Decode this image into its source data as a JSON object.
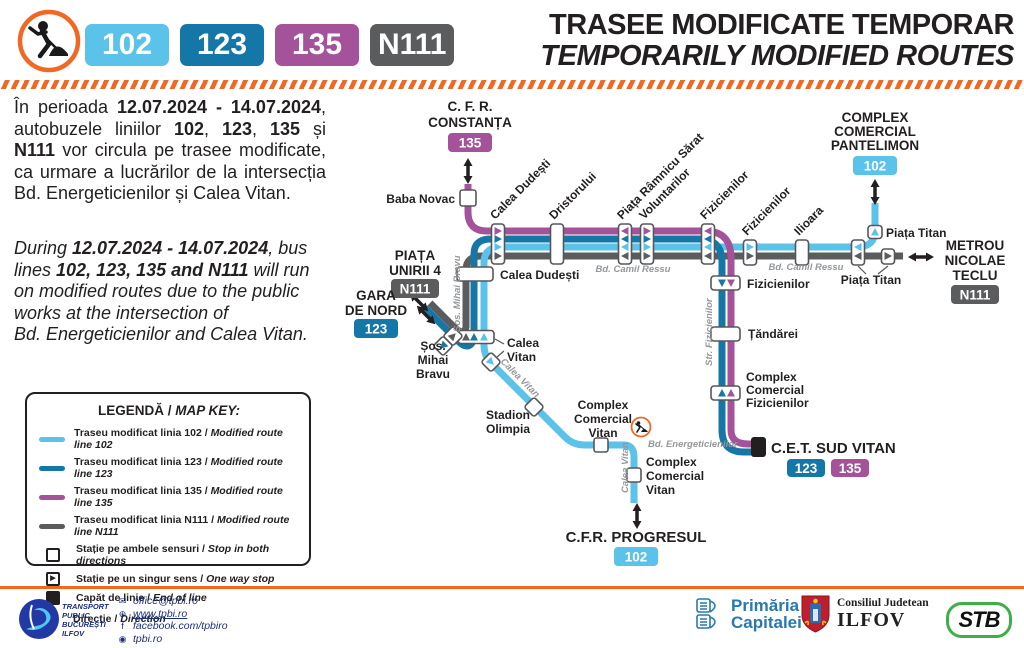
{
  "colors": {
    "line102": "#5BC2E9",
    "line123": "#1577A7",
    "line135": "#A4539B",
    "lineN111": "#5B5C5E",
    "accent_orange": "#F26722"
  },
  "header": {
    "badges": [
      {
        "label": "102",
        "color_key": "line102"
      },
      {
        "label": "123",
        "color_key": "line123"
      },
      {
        "label": "135",
        "color_key": "line135"
      },
      {
        "label": "N111",
        "color_key": "lineN111"
      }
    ],
    "title_line1": "TRASEE MODIFICATE TEMPORAR",
    "title_line2": "TEMPORARILY MODIFIED ROUTES"
  },
  "info": {
    "paragraph_ro": [
      {
        "t": "În perioada ",
        "b": false
      },
      {
        "t": "12.07.2024 - 14.07.2024",
        "b": true
      },
      {
        "t": ", autobuzele liniilor ",
        "b": false
      },
      {
        "t": "102",
        "b": true
      },
      {
        "t": ", ",
        "b": false
      },
      {
        "t": "123",
        "b": true
      },
      {
        "t": ", ",
        "b": false
      },
      {
        "t": "135",
        "b": true
      },
      {
        "t": " și ",
        "b": false
      },
      {
        "t": "N111",
        "b": true
      },
      {
        "t": " vor circula pe trasee modificate, ca urmare a lucrărilor de la intersecția Bd. Energeticienilor și Calea Vitan.",
        "b": false
      }
    ],
    "paragraph_en": [
      {
        "t": "During ",
        "b": false
      },
      {
        "t": "12.07.2024 - 14.07.2024",
        "b": true
      },
      {
        "t": ", bus lines ",
        "b": false
      },
      {
        "t": "102, 123, 135 and N111",
        "b": true
      },
      {
        "t": " will run on modified routes due to the public works at the intersection of",
        "b": false
      },
      {
        "br": true
      },
      {
        "t": "Bd. Energeticienilor and Calea Vitan.",
        "b": false
      }
    ]
  },
  "legend": {
    "title_ro": "LEGENDĂ",
    "title_en": "MAP KEY:",
    "items": [
      {
        "type": "line",
        "color_key": "line102",
        "ro": "Traseu modificat linia 102",
        "en": "Modified route line 102"
      },
      {
        "type": "line",
        "color_key": "line123",
        "ro": "Traseu modificat linia 123",
        "en": "Modified route line 123"
      },
      {
        "type": "line",
        "color_key": "line135",
        "ro": "Traseu modificat linia 135",
        "en": "Modified route line 135"
      },
      {
        "type": "line",
        "color_key": "lineN111",
        "ro": "Traseu modificat linia N111",
        "en": "Modified route line N111"
      },
      {
        "type": "stop-both",
        "ro": "Stație pe ambele sensuri",
        "en": "Stop in both directions"
      },
      {
        "type": "stop-oneway",
        "ro": "Stație pe un singur sens",
        "en": "One way stop"
      },
      {
        "type": "terminus",
        "ro": "Capăt de linie",
        "en": "End of line"
      },
      {
        "type": "direction",
        "ro": "Direcție",
        "en": "Direction"
      }
    ]
  },
  "map": {
    "terminals": {
      "cfr_constanta": {
        "lines": [
          "C. F. R.",
          "CONSTANȚA"
        ],
        "badge": "135"
      },
      "complex_pantelimon": {
        "lines": [
          "COMPLEX",
          "COMERCIAL",
          "PANTELIMON"
        ],
        "badge": "102"
      },
      "metrou_teclu": {
        "lines": [
          "METROU",
          "NICOLAE",
          "TECLU"
        ],
        "badge": "N111"
      },
      "piata_unirii": {
        "lines": [
          "PIAȚA",
          "UNIRII 4"
        ],
        "badge": "N111"
      },
      "gara_de_nord": {
        "lines": [
          "GARA",
          "DE NORD"
        ],
        "badge": "123"
      },
      "cet_sud_vitan": {
        "label": "C.E.T. SUD VITAN",
        "badge1": "123",
        "badge2": "135"
      },
      "cfr_progresul": {
        "label": "C.F.R. PROGRESUL",
        "badge": "102"
      }
    },
    "stops": {
      "baba_novac": "Baba Novac",
      "calea_dudesti_corridor": "Calea Dudești",
      "dristorului": "Dristorului",
      "piata_ramnicu_sarat": "Piața Râmnicu Sărat",
      "voluntarilor": "Voluntarilor",
      "fizicienilor_bend": "Fizicienilor",
      "fizicienilor_east": "Fizicienilor",
      "ilioara": "Ilioara",
      "piata_titan_north": "Piața Titan",
      "piata_titan_south": "Piața Titan",
      "calea_dudesti_vertical": "Calea Dudești",
      "calea_vitan_junction": [
        "Calea",
        "Vitan"
      ],
      "sos_mihai_bravu": [
        "Șos.",
        "Mihai",
        "Bravu"
      ],
      "stadion_olimpia": [
        "Stadion",
        "Olimpia"
      ],
      "complex_comercial_vitan_1": [
        "Complex",
        "Comercial",
        "Vitan"
      ],
      "complex_comercial_vitan_2": [
        "Complex",
        "Comercial",
        "Vitan"
      ],
      "fizicienilor_south": "Fizicienilor",
      "tandarei": "Țăndărei",
      "complex_comercial_fizicienilor": [
        "Complex",
        "Comercial",
        "Fizicienilor"
      ]
    },
    "streets": {
      "camil_ressu": "Bd. Camil Ressu",
      "sos_mihai_bravu": "Șos. Mihai Bravu",
      "calea_vitan_diag": "Calea Vitan",
      "calea_vitan_vert": "Calea Vitan",
      "str_fizicienilor": "Str. Fizicienilor",
      "energeticienilor": "Bd. Energeticienilor"
    }
  },
  "footer": {
    "tpbi_name_lines": [
      "TRANSPORT",
      "PUBLIC",
      "BUCUREȘTI",
      "ILFOV"
    ],
    "contacts": [
      {
        "icon": "email-icon",
        "glyph": "✉",
        "text": "office@tpbi.ro",
        "underline": false
      },
      {
        "icon": "globe-icon",
        "glyph": "⊕",
        "text": "www.tpbi.ro",
        "underline": true
      },
      {
        "icon": "facebook-icon",
        "glyph": "f",
        "text": "facebook.com/tpbiro",
        "underline": false
      },
      {
        "icon": "instagram-icon",
        "glyph": "◉",
        "text": "tpbi.ro",
        "underline": false
      }
    ],
    "primaria_line1": "Primăria",
    "primaria_line2": "Capitalei",
    "ilfov_line1": "Consiliul Judetean",
    "ilfov_line2": "ILFOV",
    "stb_label": "STB"
  }
}
